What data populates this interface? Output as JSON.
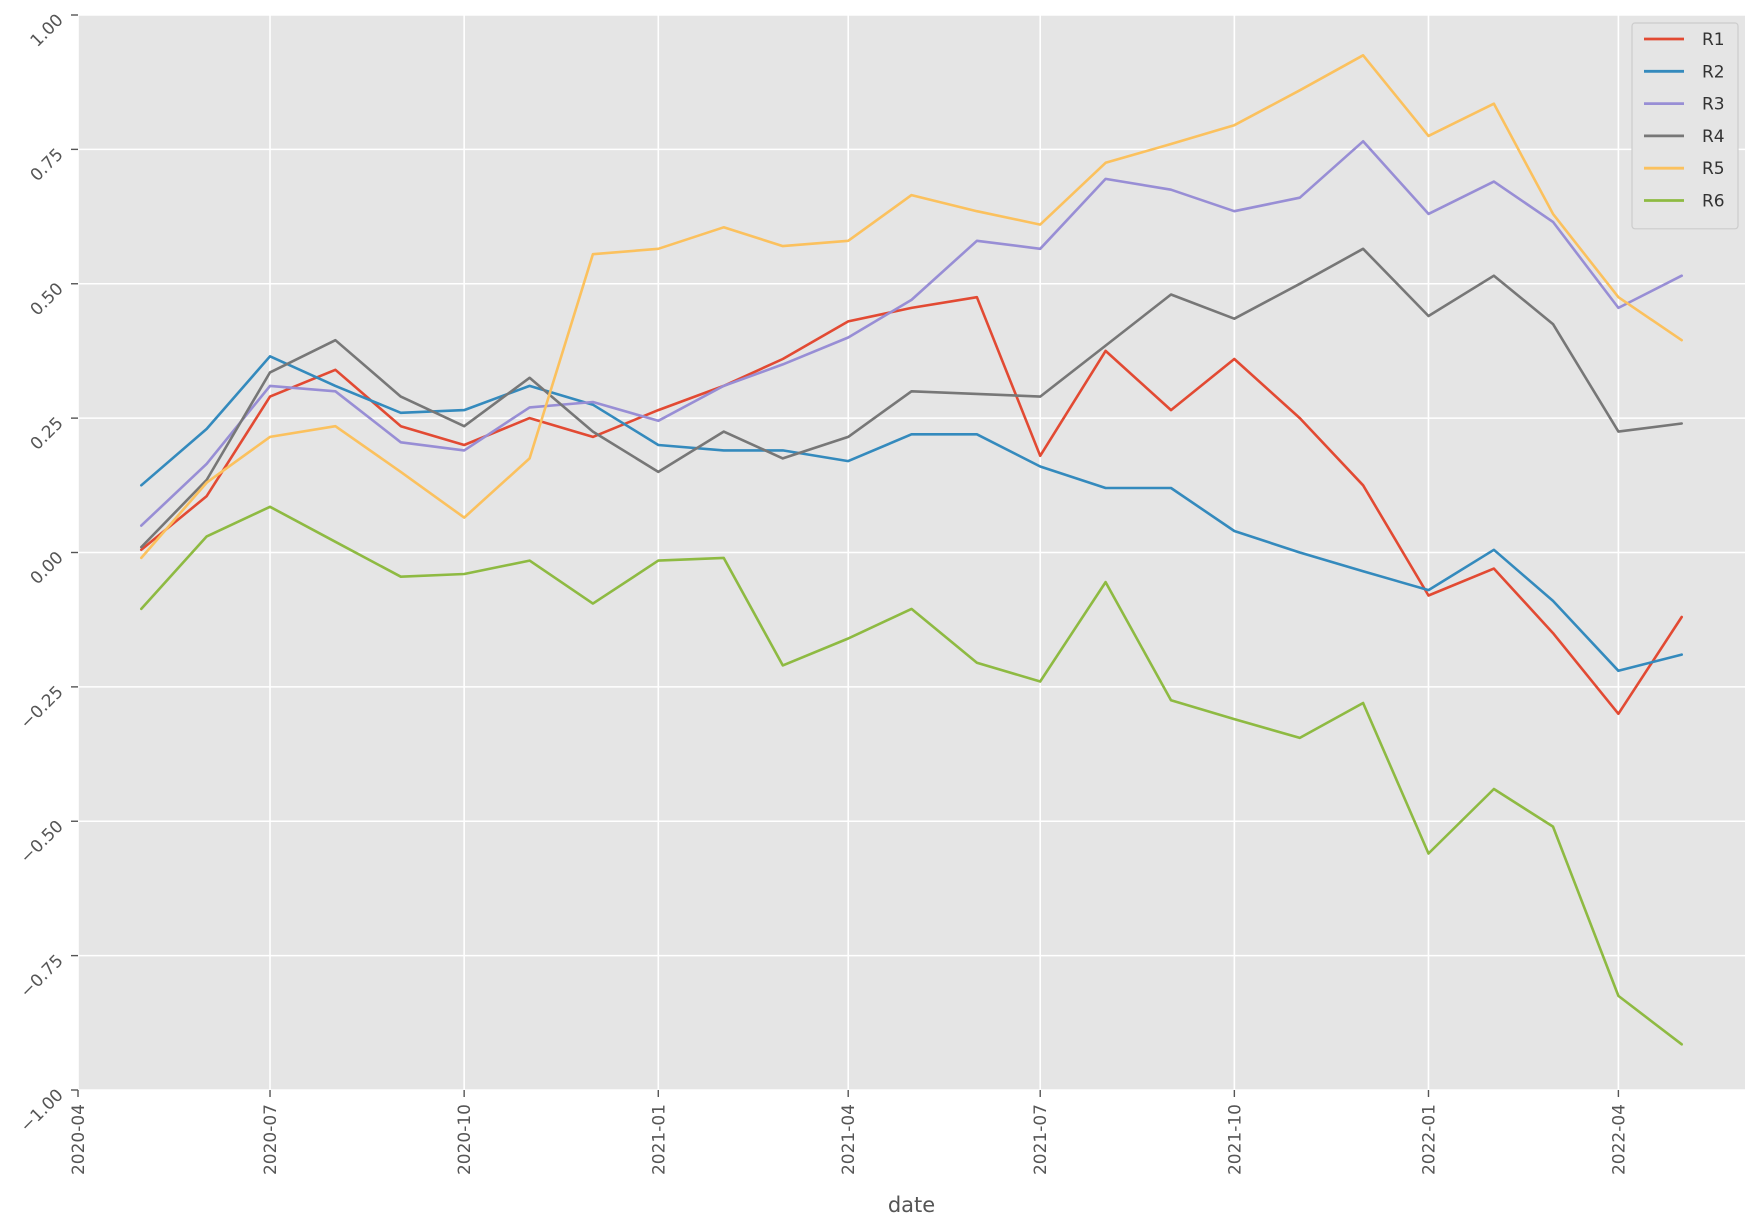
{
  "chart_data": {
    "type": "line",
    "title": "",
    "xlabel": "date",
    "ylabel": "",
    "x": [
      "2020-05",
      "2020-06",
      "2020-07",
      "2020-08",
      "2020-09",
      "2020-10",
      "2020-11",
      "2020-12",
      "2021-01",
      "2021-02",
      "2021-03",
      "2021-04",
      "2021-05",
      "2021-06",
      "2021-07",
      "2021-08",
      "2021-09",
      "2021-10",
      "2021-11",
      "2021-12",
      "2022-01",
      "2022-02",
      "2022-03",
      "2022-04",
      "2022-05"
    ],
    "xlim": [
      "2020-04-01",
      "2022-05-31"
    ],
    "x_ticks": [
      "2020-04",
      "2020-07",
      "2020-10",
      "2021-01",
      "2021-04",
      "2021-07",
      "2021-10",
      "2022-01",
      "2022-04"
    ],
    "ylim": [
      -1.0,
      1.0
    ],
    "y_ticks": [
      {
        "value": 1.0,
        "label": "1.00"
      },
      {
        "value": 0.75,
        "label": "0.75"
      },
      {
        "value": 0.5,
        "label": "0.50"
      },
      {
        "value": 0.25,
        "label": "0.25"
      },
      {
        "value": 0.0,
        "label": "0.00"
      },
      {
        "value": -0.25,
        "label": "−0.25"
      },
      {
        "value": -0.5,
        "label": "−0.50"
      },
      {
        "value": -0.75,
        "label": "−0.75"
      },
      {
        "value": -1.0,
        "label": "−1.00"
      }
    ],
    "grid": true,
    "legend_position": "top-right",
    "series": [
      {
        "name": "R1",
        "color": "#E24A33",
        "values": [
          0.005,
          0.105,
          0.29,
          0.34,
          0.235,
          0.2,
          0.25,
          0.215,
          0.265,
          0.31,
          0.36,
          0.43,
          0.455,
          0.475,
          0.18,
          0.375,
          0.265,
          0.36,
          0.25,
          0.125,
          -0.08,
          -0.03,
          -0.15,
          -0.3,
          -0.12
        ]
      },
      {
        "name": "R2",
        "color": "#348ABD",
        "values": [
          0.125,
          0.23,
          0.365,
          0.31,
          0.26,
          0.265,
          0.31,
          0.275,
          0.2,
          0.19,
          0.19,
          0.17,
          0.22,
          0.22,
          0.16,
          0.12,
          0.12,
          0.04,
          0.0,
          -0.035,
          -0.07,
          0.005,
          -0.09,
          -0.22,
          -0.19
        ]
      },
      {
        "name": "R3",
        "color": "#988ED5",
        "values": [
          0.05,
          0.165,
          0.31,
          0.3,
          0.205,
          0.19,
          0.27,
          0.28,
          0.245,
          0.31,
          0.35,
          0.4,
          0.47,
          0.58,
          0.565,
          0.695,
          0.675,
          0.635,
          0.66,
          0.765,
          0.63,
          0.69,
          0.615,
          0.455,
          0.515
        ]
      },
      {
        "name": "R4",
        "color": "#777777",
        "values": [
          0.01,
          0.135,
          0.335,
          0.395,
          0.29,
          0.235,
          0.325,
          0.225,
          0.15,
          0.225,
          0.175,
          0.215,
          0.3,
          0.295,
          0.29,
          0.385,
          0.48,
          0.435,
          0.5,
          0.565,
          0.44,
          0.515,
          0.425,
          0.225,
          0.24
        ]
      },
      {
        "name": "R5",
        "color": "#FBC15E",
        "values": [
          -0.01,
          0.13,
          0.215,
          0.235,
          0.15,
          0.065,
          0.175,
          0.555,
          0.565,
          0.605,
          0.57,
          0.58,
          0.665,
          0.635,
          0.61,
          0.725,
          0.76,
          0.795,
          0.86,
          0.925,
          0.775,
          0.835,
          0.63,
          0.475,
          0.395
        ]
      },
      {
        "name": "R6",
        "color": "#8EBA42",
        "values": [
          -0.105,
          0.03,
          0.085,
          0.02,
          -0.045,
          -0.04,
          -0.015,
          -0.095,
          -0.015,
          -0.01,
          -0.21,
          -0.16,
          -0.105,
          -0.205,
          -0.24,
          -0.055,
          -0.275,
          -0.31,
          -0.345,
          -0.28,
          -0.56,
          -0.44,
          -0.51,
          -0.825,
          -0.915
        ]
      }
    ]
  }
}
